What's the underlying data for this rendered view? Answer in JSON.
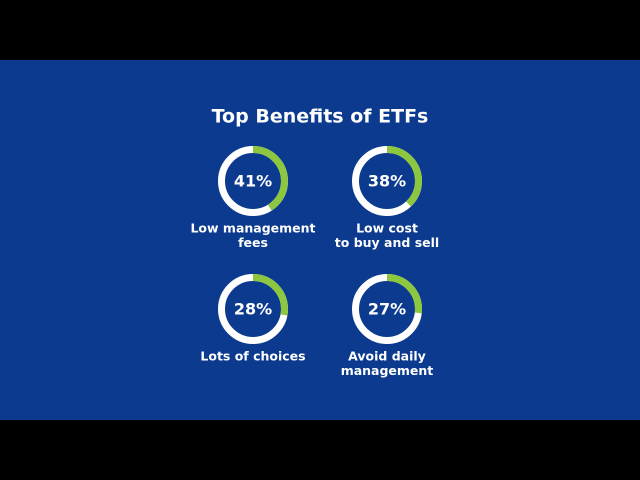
{
  "title": "Top Benefits of ETFs",
  "chart_data": [
    {
      "type": "donut",
      "values": [
        41
      ],
      "value_labels": [
        "41%"
      ],
      "label_lines": [
        "Low management",
        "fees"
      ],
      "ylim": [
        0,
        100
      ],
      "color": "#8dc63f",
      "track_color": "#ffffff"
    },
    {
      "type": "donut",
      "values": [
        38
      ],
      "value_labels": [
        "38%"
      ],
      "label_lines": [
        "Low cost",
        "to buy and sell"
      ],
      "ylim": [
        0,
        100
      ],
      "color": "#8dc63f",
      "track_color": "#ffffff"
    },
    {
      "type": "donut",
      "values": [
        28
      ],
      "value_labels": [
        "28%"
      ],
      "label_lines": [
        "Lots of choices"
      ],
      "ylim": [
        0,
        100
      ],
      "color": "#8dc63f",
      "track_color": "#ffffff"
    },
    {
      "type": "donut",
      "values": [
        27
      ],
      "value_labels": [
        "27%"
      ],
      "label_lines": [
        "Avoid daily",
        "management"
      ],
      "ylim": [
        0,
        100
      ],
      "color": "#8dc63f",
      "track_color": "#ffffff"
    }
  ]
}
